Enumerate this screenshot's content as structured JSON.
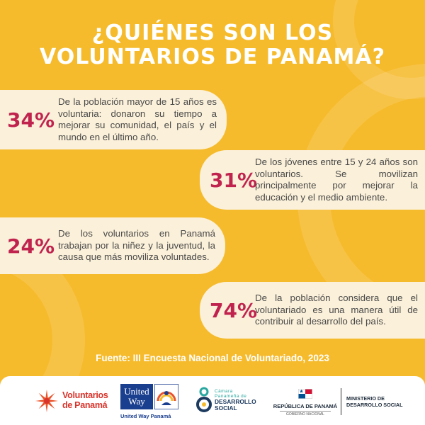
{
  "title": {
    "line1": "¿QUIÉNES SON LOS",
    "line2": "VOLUNTARIOS DE PANAMÁ?"
  },
  "stats": [
    {
      "percent": "34%",
      "text": "De la población mayor de 15 años es voluntaria: donaron su tiempo a mejorar su comunidad, el país y el mundo en el último año."
    },
    {
      "percent": "31%",
      "text": "De los jóvenes entre 15 y 24 años son voluntarios. Se movilizan principalmente por mejorar la educación y el medio ambiente."
    },
    {
      "percent": "24%",
      "text": "De los voluntarios en Panamá trabajan por la niñez y la juventud, la causa que más moviliza voluntades."
    },
    {
      "percent": "74%",
      "text": "De la población considera que el voluntariado es una manera útil de contribuir al desarrollo del país."
    }
  ],
  "source": "Fuente: III Encuesta Nacional de Voluntariado, 2023",
  "logos": {
    "voluntarios": {
      "line1": "Voluntarios",
      "line2": "de Panamá"
    },
    "united_way": {
      "line1": "United",
      "line2": "Way",
      "caption": "United Way Panamá"
    },
    "camara": {
      "line1": "Cámara",
      "line2": "Panameña de",
      "line3": "DESARROLLO",
      "line4": "SOCIAL"
    },
    "republica": {
      "name": "REPÚBLICA DE PANAMÁ",
      "sub": "GOBIERNO NACIONAL"
    },
    "ministerio": {
      "line1": "MINISTERIO DE",
      "line2": "DESARROLLO SOCIAL"
    }
  },
  "colors": {
    "background": "#f6bb2c",
    "card": "#fbf0d9",
    "accent": "#c0234e"
  }
}
